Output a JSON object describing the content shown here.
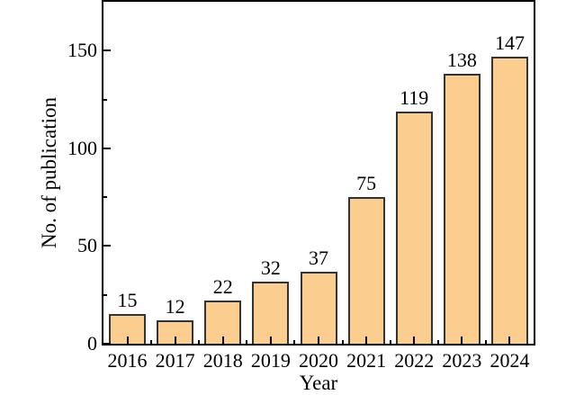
{
  "figure": {
    "background": "#ffffff"
  },
  "chart_data": {
    "type": "bar",
    "title": "",
    "xlabel": "Year",
    "ylabel": "No. of publication",
    "categories": [
      "2016",
      "2017",
      "2018",
      "2019",
      "2020",
      "2021",
      "2022",
      "2023",
      "2024"
    ],
    "values": [
      15,
      12,
      22,
      32,
      37,
      75,
      119,
      138,
      147
    ],
    "ylim": [
      0,
      175
    ],
    "yticks_major": [
      0,
      50,
      100,
      150
    ],
    "yticks_minor": [
      25,
      75,
      125
    ],
    "bar_value_labels_shown": true,
    "grid": false,
    "legend": null,
    "tick_direction": "in",
    "frame": "box",
    "colors": {
      "bar_fill": "#FBCD8F",
      "bar_border": "#333333",
      "axis": "#000000",
      "text": "#000000"
    }
  }
}
